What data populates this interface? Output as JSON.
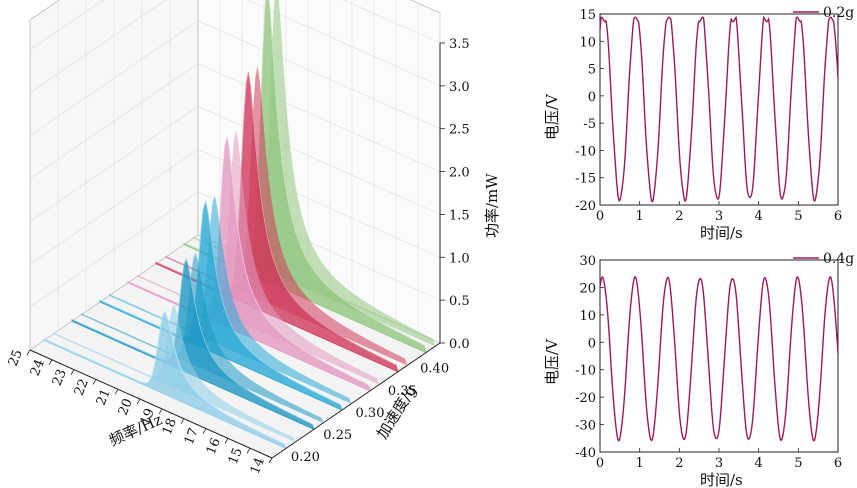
{
  "chart_data": [
    {
      "type": "3d-waterfall",
      "xlabel": "频率/Hz",
      "ylabel": "加速度/g",
      "zlabel": "功率/mW",
      "x_ticks": [
        "25",
        "24",
        "23",
        "22",
        "21",
        "20",
        "19",
        "18",
        "17",
        "16",
        "15",
        "14"
      ],
      "y_ticks": [
        "0.20",
        "0.25",
        "0.30",
        "0.35",
        "0.40"
      ],
      "z_ticks": [
        "0.0",
        "0.5",
        "1.0",
        "1.5",
        "2.0",
        "2.5",
        "3.0",
        "3.5"
      ],
      "xlim": [
        14,
        25
      ],
      "zlim": [
        0,
        3.5
      ],
      "series": [
        {
          "accel": 0.2,
          "peak_freq": 19.5,
          "peak_power": 0.95,
          "color": "#8ecde8"
        },
        {
          "accel": 0.25,
          "peak_freq": 19.8,
          "peak_power": 1.3,
          "color": "#1f99c4"
        },
        {
          "accel": 0.3,
          "peak_freq": 20.2,
          "peak_power": 1.7,
          "color": "#2aa9d6"
        },
        {
          "accel": 0.35,
          "peak_freq": 20.5,
          "peak_power": 2.2,
          "color": "#e39ac2"
        },
        {
          "accel": 0.4,
          "peak_freq": 20.8,
          "peak_power": 2.7,
          "color": "#cf3a5b"
        },
        {
          "accel": 0.45,
          "peak_freq": 21.2,
          "peak_power": 3.4,
          "color": "#92c77f"
        }
      ]
    },
    {
      "type": "line",
      "legend": "0.2g",
      "xlabel": "时间/s",
      "ylabel": "电压/V",
      "xlim": [
        0,
        6
      ],
      "ylim": [
        -20,
        15
      ],
      "x_ticks": [
        "0",
        "1",
        "2",
        "3",
        "4",
        "5",
        "6"
      ],
      "y_ticks": [
        "15",
        "10",
        "5",
        "0",
        "-5",
        "-10",
        "-15",
        "-20"
      ],
      "amplitude": 17.5,
      "offset": -1.5,
      "frequency_hz": 1.22,
      "phase_zero_value": 12,
      "color": "#9b1b5a"
    },
    {
      "type": "line",
      "legend": "0.4g",
      "xlabel": "时间/s",
      "ylabel": "电压/V",
      "xlim": [
        0,
        6
      ],
      "ylim": [
        -40,
        30
      ],
      "x_ticks": [
        "0",
        "1",
        "2",
        "3",
        "4",
        "5",
        "6"
      ],
      "y_ticks": [
        "30",
        "20",
        "10",
        "0",
        "-10",
        "-20",
        "-30",
        "-40"
      ],
      "amplitude": 29.5,
      "offset": -6,
      "frequency_hz": 1.22,
      "phase_zero_value": 20,
      "color": "#9b1b5a"
    }
  ]
}
